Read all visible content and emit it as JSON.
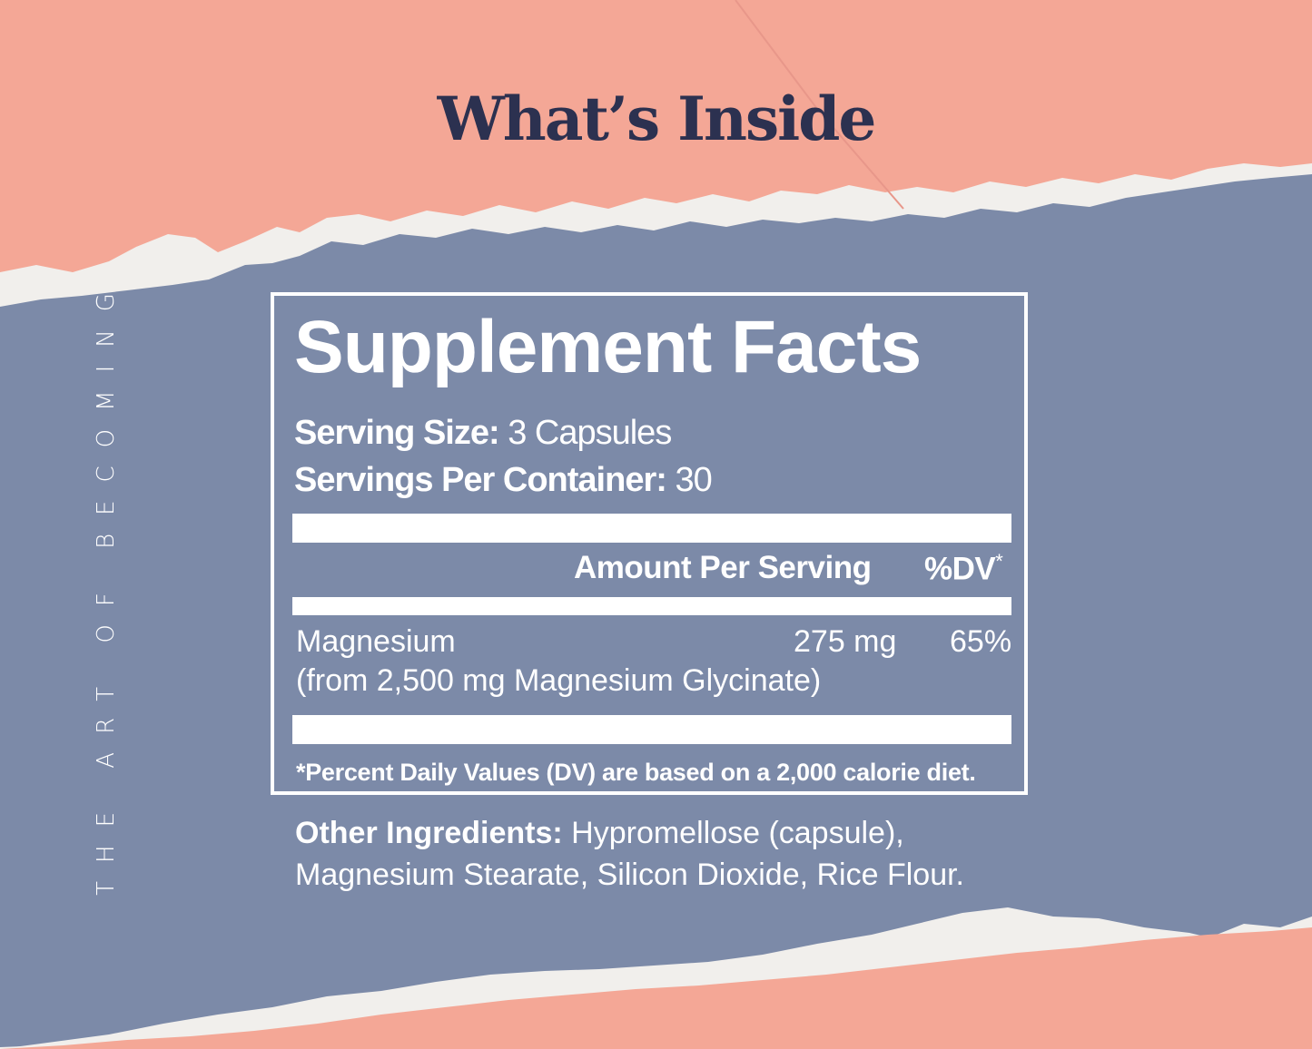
{
  "page": {
    "heading": "What’s Inside",
    "side_text": "THE ART OF BECOMING"
  },
  "colors": {
    "background_peach": "#f4a796",
    "panel_blue": "#7c8aa8",
    "heading_navy": "#2c3150",
    "label_white": "#ffffff",
    "torn_edge": "#f1efec"
  },
  "label": {
    "title": "Supplement Facts",
    "serving_size_label": "Serving Size:",
    "serving_size_value": "3 Capsules",
    "servings_per_container_label": "Servings Per Container:",
    "servings_per_container_value": "30",
    "column_amount": "Amount Per Serving",
    "column_dv": "%DV",
    "column_dv_mark": "*",
    "nutrient_name": "Magnesium",
    "nutrient_source": "(from 2,500 mg Magnesium Glycinate)",
    "nutrient_amount": "275 mg",
    "nutrient_dv": "65%",
    "footnote": "*Percent Daily Values (DV) are based on a 2,000 calorie diet."
  },
  "other_ingredients": {
    "label": "Other Ingredients:",
    "text": "Hypromellose (capsule), Magnesium Stearate, Silicon Dioxide, Rice Flour."
  }
}
